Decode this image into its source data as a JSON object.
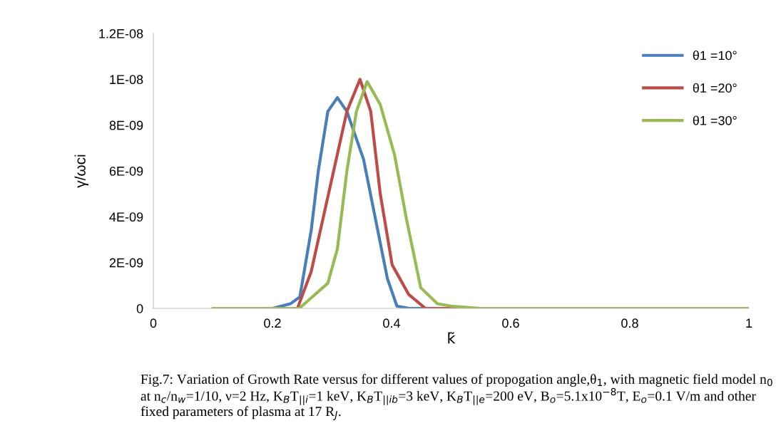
{
  "chart_data": {
    "type": "line",
    "xlabel": "k̃",
    "ylabel": "γ/ωci",
    "xlim": [
      0,
      1
    ],
    "xticks": [
      0,
      0.2,
      0.4,
      0.6,
      0.8,
      1
    ],
    "ylim": [
      0,
      1.2e-08
    ],
    "yticks": [
      {
        "value": 0,
        "label": "0"
      },
      {
        "value": 2e-09,
        "label": "2E-09"
      },
      {
        "value": 4e-09,
        "label": "4E-09"
      },
      {
        "value": 6e-09,
        "label": "6E-09"
      },
      {
        "value": 8e-09,
        "label": "8E-09"
      },
      {
        "value": 1e-08,
        "label": "1E-08"
      },
      {
        "value": 1.2e-08,
        "label": "1.2E-08"
      }
    ],
    "grid": false,
    "legend": "top right",
    "marker": "none",
    "line_style": "solid",
    "series": [
      {
        "name": "θ1 =10°",
        "color": "#4a7ebb",
        "x": [
          0.1,
          0.15,
          0.2,
          0.23,
          0.246,
          0.265,
          0.277,
          0.293,
          0.309,
          0.325,
          0.353,
          0.373,
          0.393,
          0.409,
          0.43,
          0.5
        ],
        "values": [
          0,
          0,
          0,
          2e-10,
          5e-10,
          3.4e-09,
          6e-09,
          8.6e-09,
          9.2e-09,
          8.6e-09,
          6.5e-09,
          3.9e-09,
          1.3e-09,
          1e-10,
          0,
          0
        ]
      },
      {
        "name": "θ1 =20°",
        "color": "#be4b48",
        "x": [
          0.1,
          0.2,
          0.242,
          0.265,
          0.301,
          0.325,
          0.347,
          0.365,
          0.381,
          0.401,
          0.429,
          0.457,
          0.5,
          0.6
        ],
        "values": [
          0,
          0,
          0,
          1.6e-09,
          5.8e-09,
          8.6e-09,
          1e-08,
          8.6e-09,
          5e-09,
          1.9e-09,
          6e-10,
          0,
          0,
          0
        ]
      },
      {
        "name": "θ1 =30°",
        "color": "#98b954",
        "x": [
          0.1,
          0.2,
          0.245,
          0.293,
          0.309,
          0.325,
          0.341,
          0.359,
          0.381,
          0.405,
          0.425,
          0.449,
          0.477,
          0.5,
          0.55,
          0.6,
          0.8,
          1
        ],
        "values": [
          0,
          0,
          0,
          1.1e-09,
          2.6e-09,
          6e-09,
          8.6e-09,
          9.9e-09,
          8.9e-09,
          6.7e-09,
          3.9e-09,
          9e-10,
          2e-10,
          1e-10,
          0,
          0,
          0,
          0
        ]
      }
    ],
    "annotations": [
      "Fig.7: Variation of Growth Rate versus for different values of propogation angle,θ$_{1}$, with magnetic field model n$_{0}$ at n$_{c}$/n$_{w}$=1/10, ν=2 Hz, K$_{B}$T$_{||i}$=1 keV, K$_{B}$T$_{||ib}$=3 keV, K$_{B}$T$_{||e}$=200 eV, B$_{o}$=5.1x10$^{−8}$T, E$_{o}$=0.1 V/m and other fixed parameters of plasma at 17 R$_{J}$."
    ]
  }
}
